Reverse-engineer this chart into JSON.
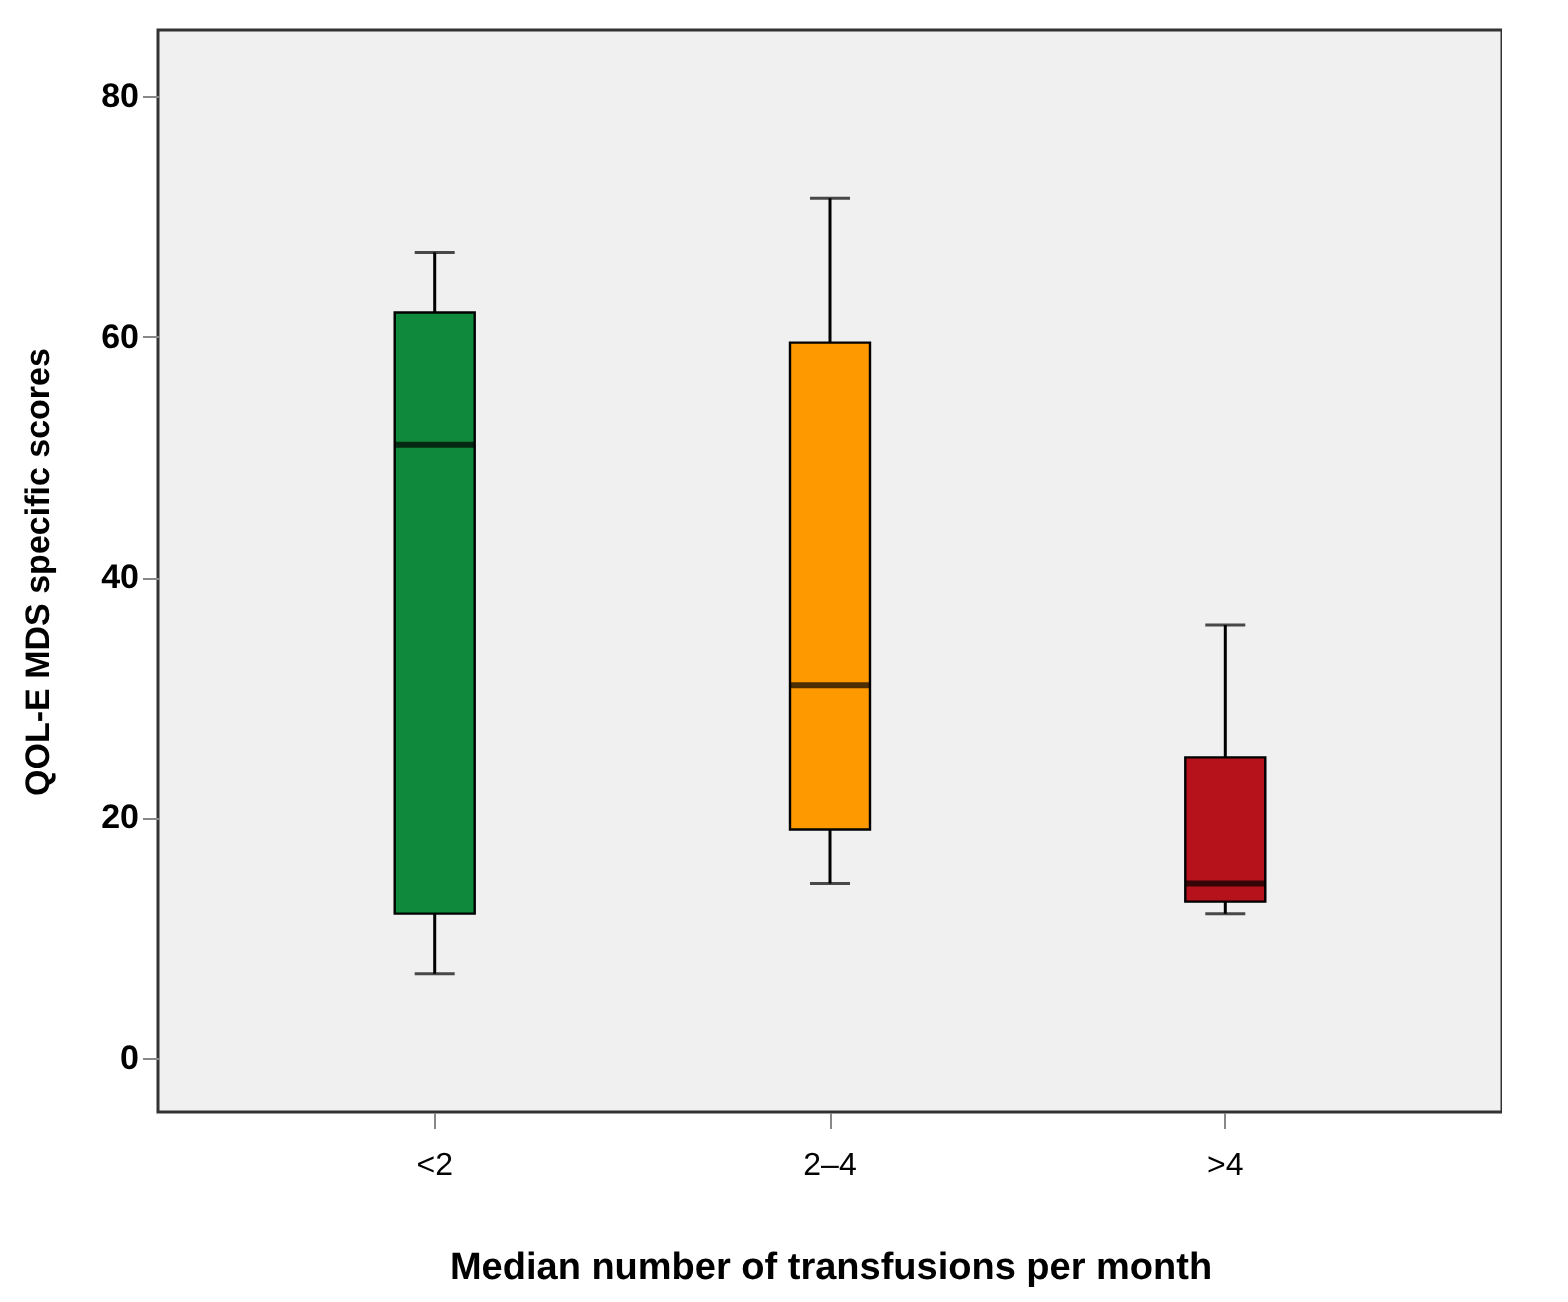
{
  "chart_data": {
    "type": "box",
    "xlabel": "Median number of transfusions per month",
    "ylabel": "QOL-E MDS specific scores",
    "categories": [
      "<2",
      "2–4",
      ">4"
    ],
    "colors": [
      "#0f8a3c",
      "#ff9900",
      "#b5121b"
    ],
    "boxes": [
      {
        "low": 7,
        "q1": 12,
        "median": 51,
        "q3": 62,
        "high": 67
      },
      {
        "low": 14.5,
        "q1": 19,
        "median": 31,
        "q3": 59.5,
        "high": 71.5
      },
      {
        "low": 12,
        "q1": 13,
        "median": 14.5,
        "q3": 25,
        "high": 36
      }
    ],
    "ylim": [
      -4.5,
      85.5
    ],
    "yticks": [
      0,
      20,
      40,
      60,
      80
    ]
  }
}
